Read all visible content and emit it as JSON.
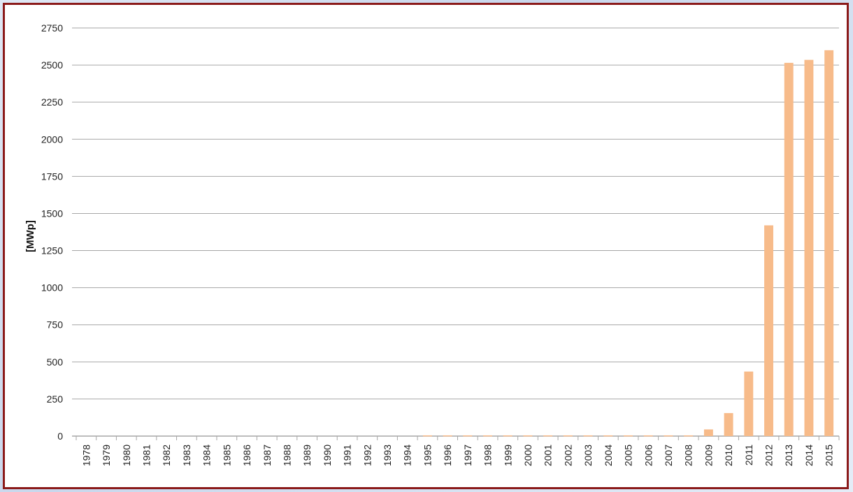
{
  "chart_data": {
    "type": "bar",
    "title": "",
    "xlabel": "",
    "ylabel": "[MWp]",
    "ylim": [
      0,
      2750
    ],
    "yticks": [
      0,
      250,
      500,
      750,
      1000,
      1250,
      1500,
      1750,
      2000,
      2250,
      2500,
      2750
    ],
    "grid": true,
    "legend": "none",
    "bar_color": "#f7bb8a",
    "categories": [
      "1978",
      "1979",
      "1980",
      "1981",
      "1982",
      "1983",
      "1984",
      "1985",
      "1986",
      "1987",
      "1988",
      "1989",
      "1990",
      "1991",
      "1992",
      "1993",
      "1994",
      "1995",
      "1996",
      "1997",
      "1998",
      "1999",
      "2000",
      "2001",
      "2002",
      "2003",
      "2004",
      "2005",
      "2006",
      "2007",
      "2008",
      "2009",
      "2010",
      "2011",
      "2012",
      "2013",
      "2014",
      "2015"
    ],
    "values": [
      0,
      0,
      0,
      0,
      0,
      0,
      0,
      0,
      0,
      0,
      0,
      0,
      0,
      0,
      0,
      0,
      0,
      5,
      5,
      5,
      5,
      5,
      5,
      5,
      5,
      5,
      5,
      5,
      5,
      5,
      5,
      45,
      155,
      435,
      1420,
      2515,
      2535,
      2600
    ]
  }
}
